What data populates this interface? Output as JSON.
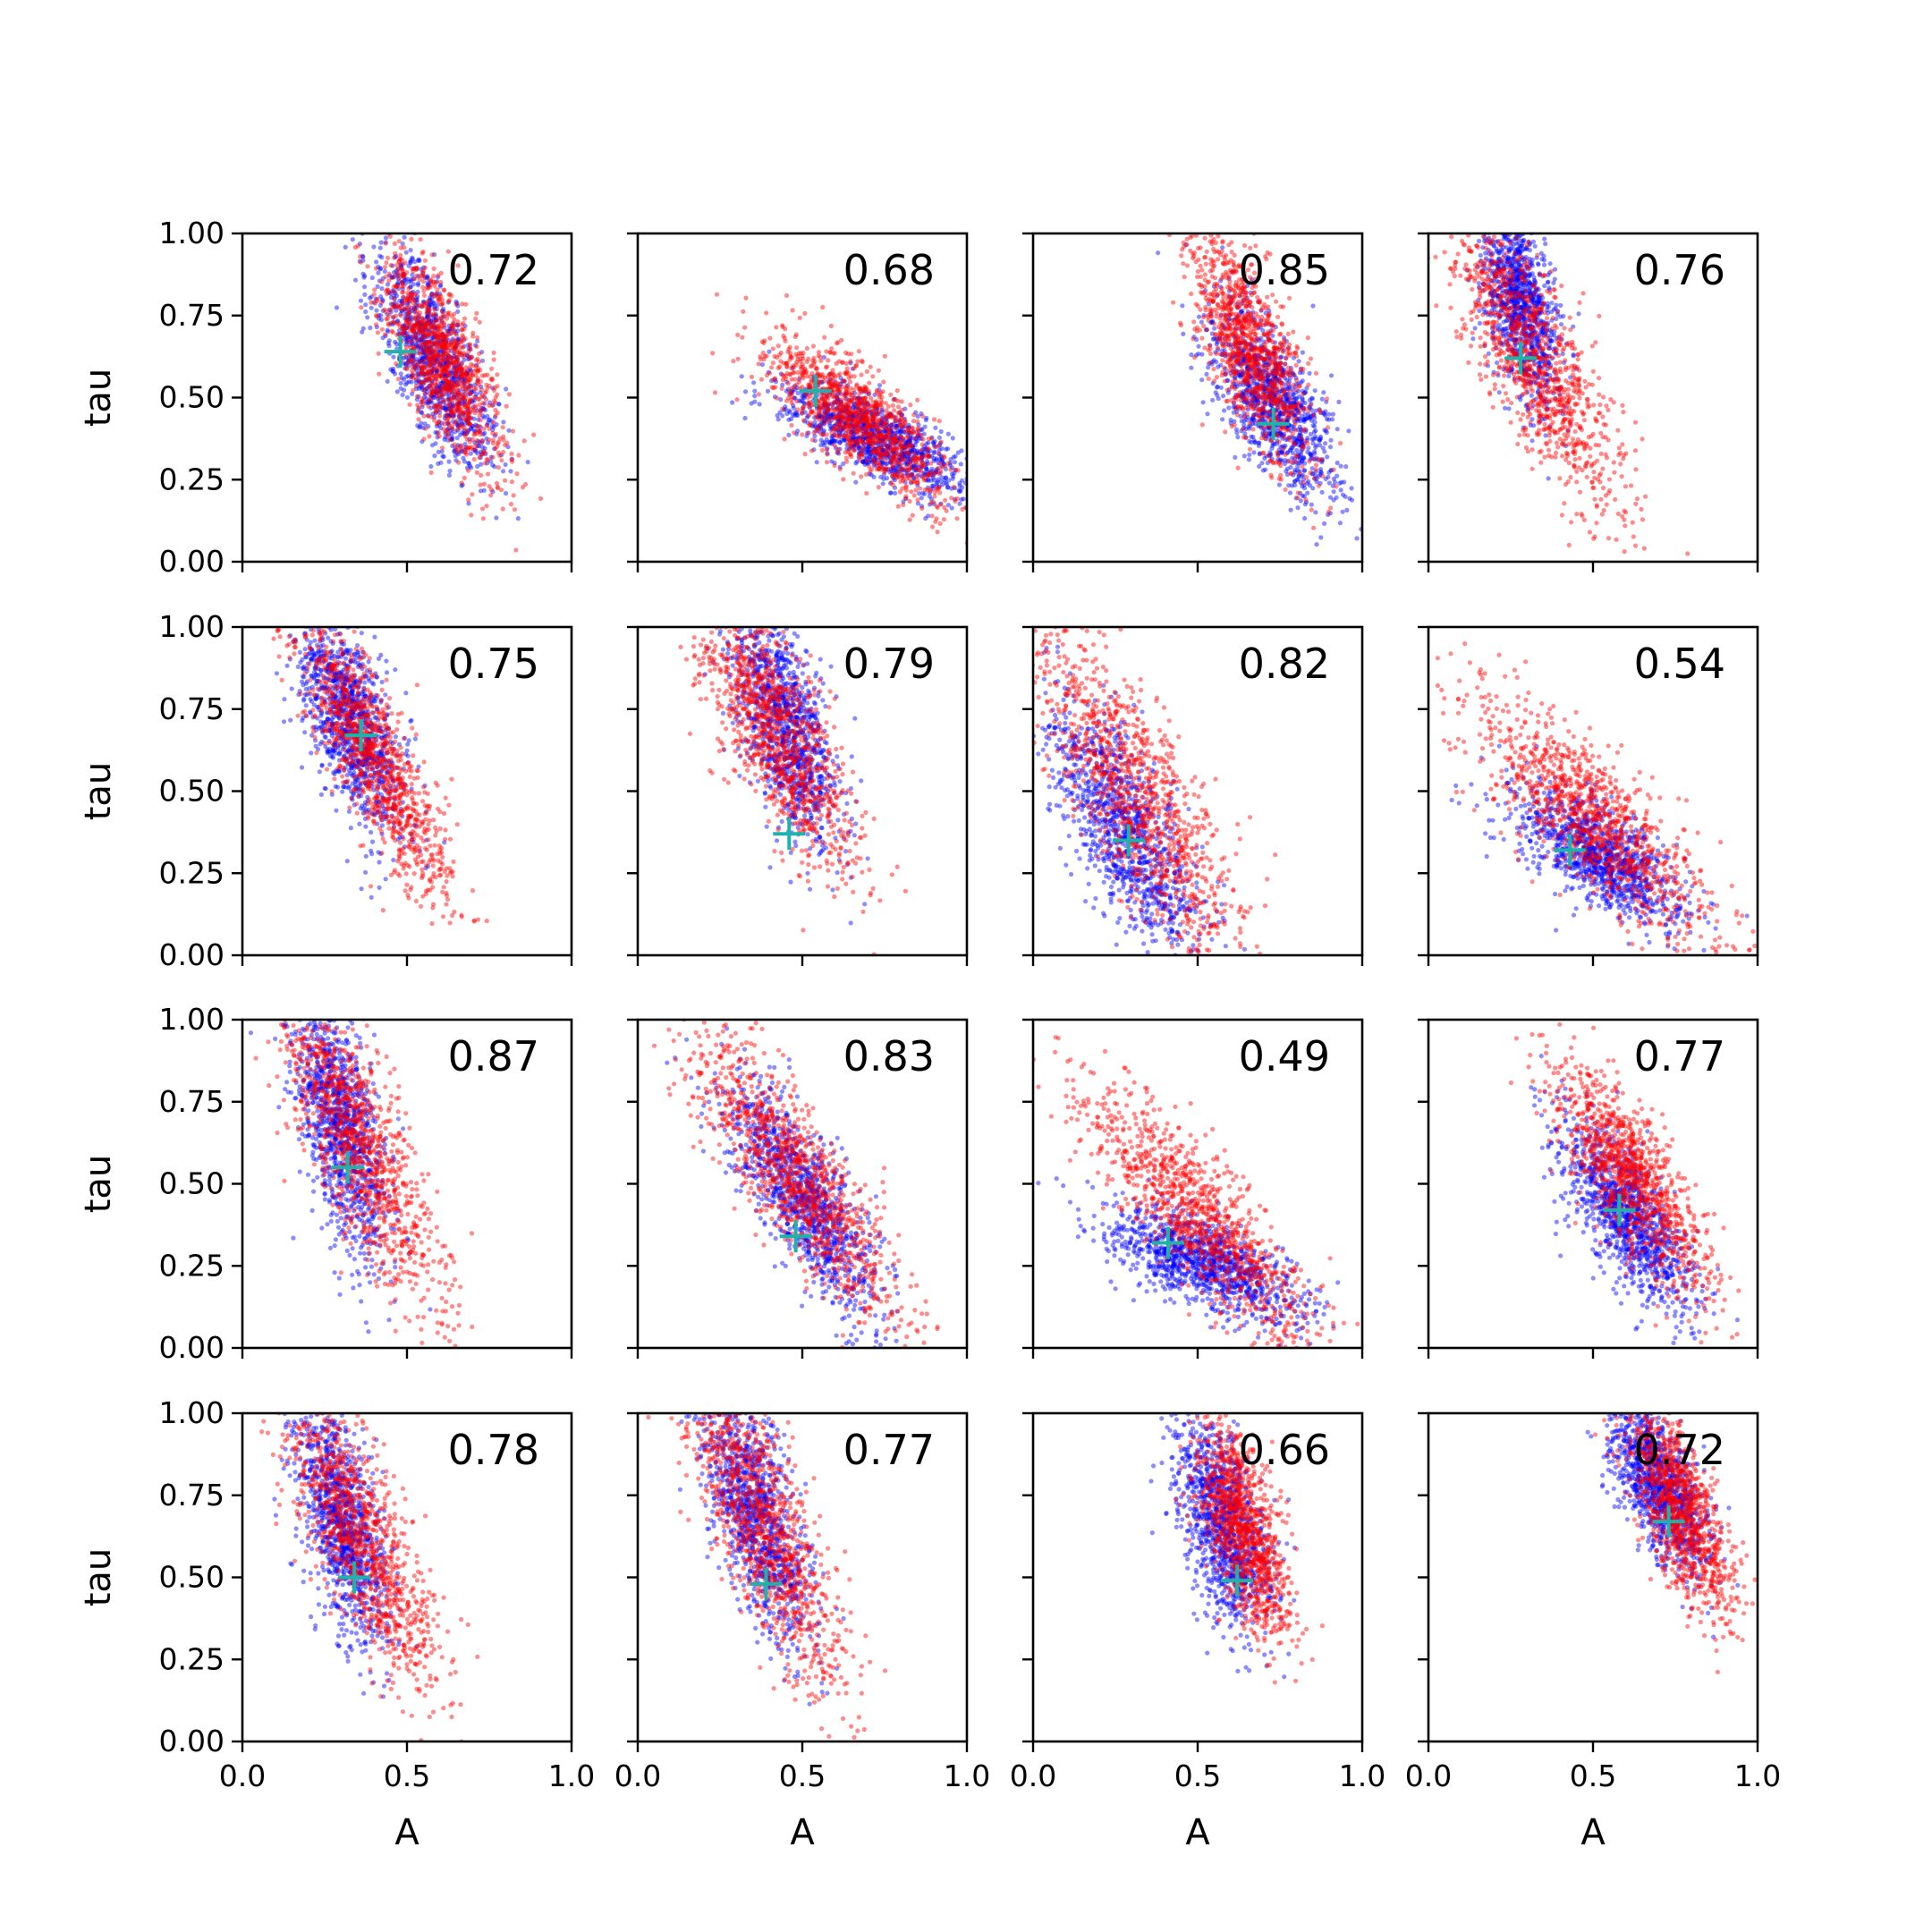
{
  "figure": {
    "xlabel": "A",
    "ylabel": "tau"
  },
  "chart_data": {
    "type": "scatter",
    "layout": "4x4 grid",
    "xlim": [
      0,
      1
    ],
    "ylim": [
      0,
      1
    ],
    "xticks": [
      "0.0",
      "0.5",
      "1.0"
    ],
    "yticks": [
      "0.00",
      "0.25",
      "0.50",
      "0.75",
      "1.00"
    ],
    "grid": false,
    "colors": {
      "blue": "#0000ff",
      "red": "#ff0000",
      "marker": "#20b2aa"
    },
    "panels": [
      {
        "label": "0.72",
        "marker": [
          0.48,
          0.64
        ],
        "blue": {
          "cx": 0.58,
          "cy": 0.62,
          "sx": 0.09,
          "sy": 0.16,
          "r": -0.7
        },
        "red": {
          "cx": 0.6,
          "cy": 0.62,
          "sx": 0.09,
          "sy": 0.16,
          "r": -0.7
        }
      },
      {
        "label": "0.68",
        "marker": [
          0.54,
          0.52
        ],
        "blue": {
          "cx": 0.72,
          "cy": 0.38,
          "sx": 0.14,
          "sy": 0.08,
          "r": -0.7
        },
        "red": {
          "cx": 0.66,
          "cy": 0.44,
          "sx": 0.14,
          "sy": 0.12,
          "r": -0.75
        }
      },
      {
        "label": "0.85",
        "marker": [
          0.73,
          0.42
        ],
        "blue": {
          "cx": 0.72,
          "cy": 0.5,
          "sx": 0.1,
          "sy": 0.15,
          "r": -0.7
        },
        "red": {
          "cx": 0.66,
          "cy": 0.66,
          "sx": 0.09,
          "sy": 0.18,
          "r": -0.7
        }
      },
      {
        "label": "0.76",
        "marker": [
          0.28,
          0.62
        ],
        "blue": {
          "cx": 0.28,
          "cy": 0.8,
          "sx": 0.06,
          "sy": 0.16,
          "r": -0.5
        },
        "red": {
          "cx": 0.32,
          "cy": 0.62,
          "sx": 0.14,
          "sy": 0.24,
          "r": -0.8
        }
      },
      {
        "label": "0.75",
        "marker": [
          0.36,
          0.67
        ],
        "blue": {
          "cx": 0.33,
          "cy": 0.72,
          "sx": 0.08,
          "sy": 0.16,
          "r": -0.6
        },
        "red": {
          "cx": 0.4,
          "cy": 0.6,
          "sx": 0.12,
          "sy": 0.22,
          "r": -0.85
        }
      },
      {
        "label": "0.79",
        "marker": [
          0.46,
          0.37
        ],
        "blue": {
          "cx": 0.45,
          "cy": 0.7,
          "sx": 0.08,
          "sy": 0.18,
          "r": -0.6
        },
        "red": {
          "cx": 0.42,
          "cy": 0.68,
          "sx": 0.12,
          "sy": 0.2,
          "r": -0.75
        }
      },
      {
        "label": "0.82",
        "marker": [
          0.29,
          0.35
        ],
        "blue": {
          "cx": 0.28,
          "cy": 0.38,
          "sx": 0.12,
          "sy": 0.2,
          "r": -0.75
        },
        "red": {
          "cx": 0.32,
          "cy": 0.48,
          "sx": 0.16,
          "sy": 0.26,
          "r": -0.8
        }
      },
      {
        "label": "0.54",
        "marker": [
          0.43,
          0.32
        ],
        "blue": {
          "cx": 0.52,
          "cy": 0.3,
          "sx": 0.13,
          "sy": 0.1,
          "r": -0.6
        },
        "red": {
          "cx": 0.5,
          "cy": 0.42,
          "sx": 0.18,
          "sy": 0.18,
          "r": -0.8
        }
      },
      {
        "label": "0.87",
        "marker": [
          0.32,
          0.55
        ],
        "blue": {
          "cx": 0.3,
          "cy": 0.68,
          "sx": 0.07,
          "sy": 0.2,
          "r": -0.6
        },
        "red": {
          "cx": 0.36,
          "cy": 0.62,
          "sx": 0.12,
          "sy": 0.24,
          "r": -0.8
        }
      },
      {
        "label": "0.83",
        "marker": [
          0.48,
          0.34
        ],
        "blue": {
          "cx": 0.5,
          "cy": 0.46,
          "sx": 0.12,
          "sy": 0.18,
          "r": -0.8
        },
        "red": {
          "cx": 0.48,
          "cy": 0.52,
          "sx": 0.16,
          "sy": 0.22,
          "r": -0.85
        }
      },
      {
        "label": "0.49",
        "marker": [
          0.41,
          0.32
        ],
        "blue": {
          "cx": 0.52,
          "cy": 0.26,
          "sx": 0.15,
          "sy": 0.08,
          "r": -0.6
        },
        "red": {
          "cx": 0.5,
          "cy": 0.4,
          "sx": 0.18,
          "sy": 0.2,
          "r": -0.85
        }
      },
      {
        "label": "0.77",
        "marker": [
          0.58,
          0.42
        ],
        "blue": {
          "cx": 0.6,
          "cy": 0.4,
          "sx": 0.1,
          "sy": 0.14,
          "r": -0.7
        },
        "red": {
          "cx": 0.62,
          "cy": 0.52,
          "sx": 0.12,
          "sy": 0.18,
          "r": -0.8
        }
      },
      {
        "label": "0.78",
        "marker": [
          0.34,
          0.5
        ],
        "blue": {
          "cx": 0.3,
          "cy": 0.68,
          "sx": 0.07,
          "sy": 0.18,
          "r": -0.6
        },
        "red": {
          "cx": 0.36,
          "cy": 0.62,
          "sx": 0.12,
          "sy": 0.24,
          "r": -0.8
        }
      },
      {
        "label": "0.77",
        "marker": [
          0.39,
          0.48
        ],
        "blue": {
          "cx": 0.36,
          "cy": 0.7,
          "sx": 0.08,
          "sy": 0.18,
          "r": -0.6
        },
        "red": {
          "cx": 0.38,
          "cy": 0.66,
          "sx": 0.12,
          "sy": 0.24,
          "r": -0.8
        }
      },
      {
        "label": "0.66",
        "marker": [
          0.62,
          0.49
        ],
        "blue": {
          "cx": 0.58,
          "cy": 0.66,
          "sx": 0.07,
          "sy": 0.16,
          "r": -0.5
        },
        "red": {
          "cx": 0.64,
          "cy": 0.64,
          "sx": 0.07,
          "sy": 0.16,
          "r": -0.6
        }
      },
      {
        "label": "0.72",
        "marker": [
          0.73,
          0.67
        ],
        "blue": {
          "cx": 0.7,
          "cy": 0.78,
          "sx": 0.07,
          "sy": 0.12,
          "r": -0.6
        },
        "red": {
          "cx": 0.76,
          "cy": 0.72,
          "sx": 0.08,
          "sy": 0.16,
          "r": -0.7
        }
      }
    ]
  }
}
